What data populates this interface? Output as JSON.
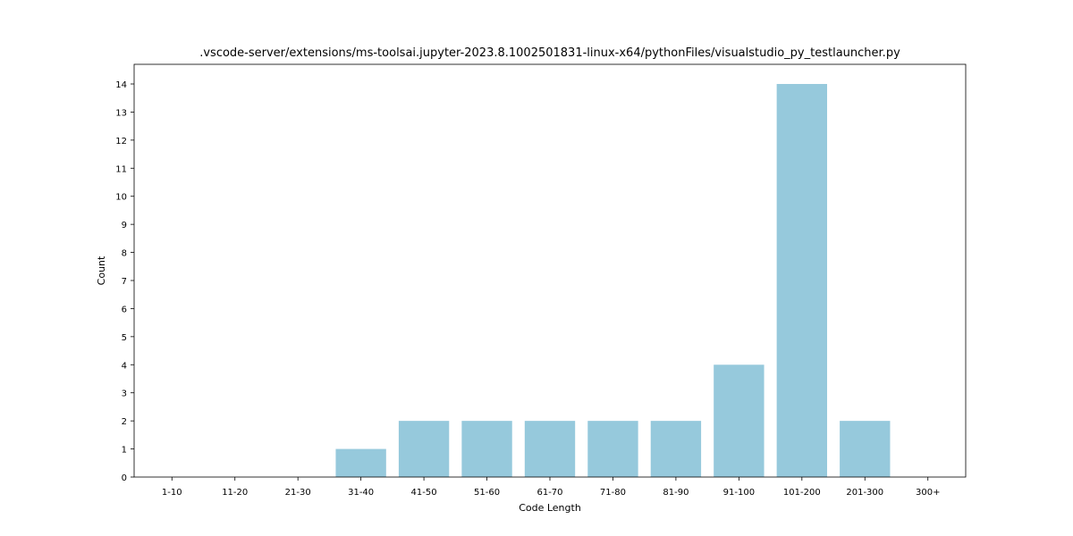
{
  "chart_data": {
    "type": "bar",
    "title": ".vscode-server/extensions/ms-toolsai.jupyter-2023.8.1002501831-linux-x64/pythonFiles/visualstudio_py_testlauncher.py",
    "xlabel": "Code Length",
    "ylabel": "Count",
    "categories": [
      "1-10",
      "11-20",
      "21-30",
      "31-40",
      "41-50",
      "51-60",
      "61-70",
      "71-80",
      "81-90",
      "91-100",
      "101-200",
      "201-300",
      "300+"
    ],
    "values": [
      0,
      0,
      0,
      1,
      2,
      2,
      2,
      2,
      2,
      4,
      14,
      2,
      0
    ],
    "ylim": [
      0,
      14.7
    ],
    "yticks": [
      0,
      1,
      2,
      3,
      4,
      5,
      6,
      7,
      8,
      9,
      10,
      11,
      12,
      13,
      14
    ],
    "bar_color": "#96c9dc",
    "grid": false,
    "legend": "none"
  }
}
